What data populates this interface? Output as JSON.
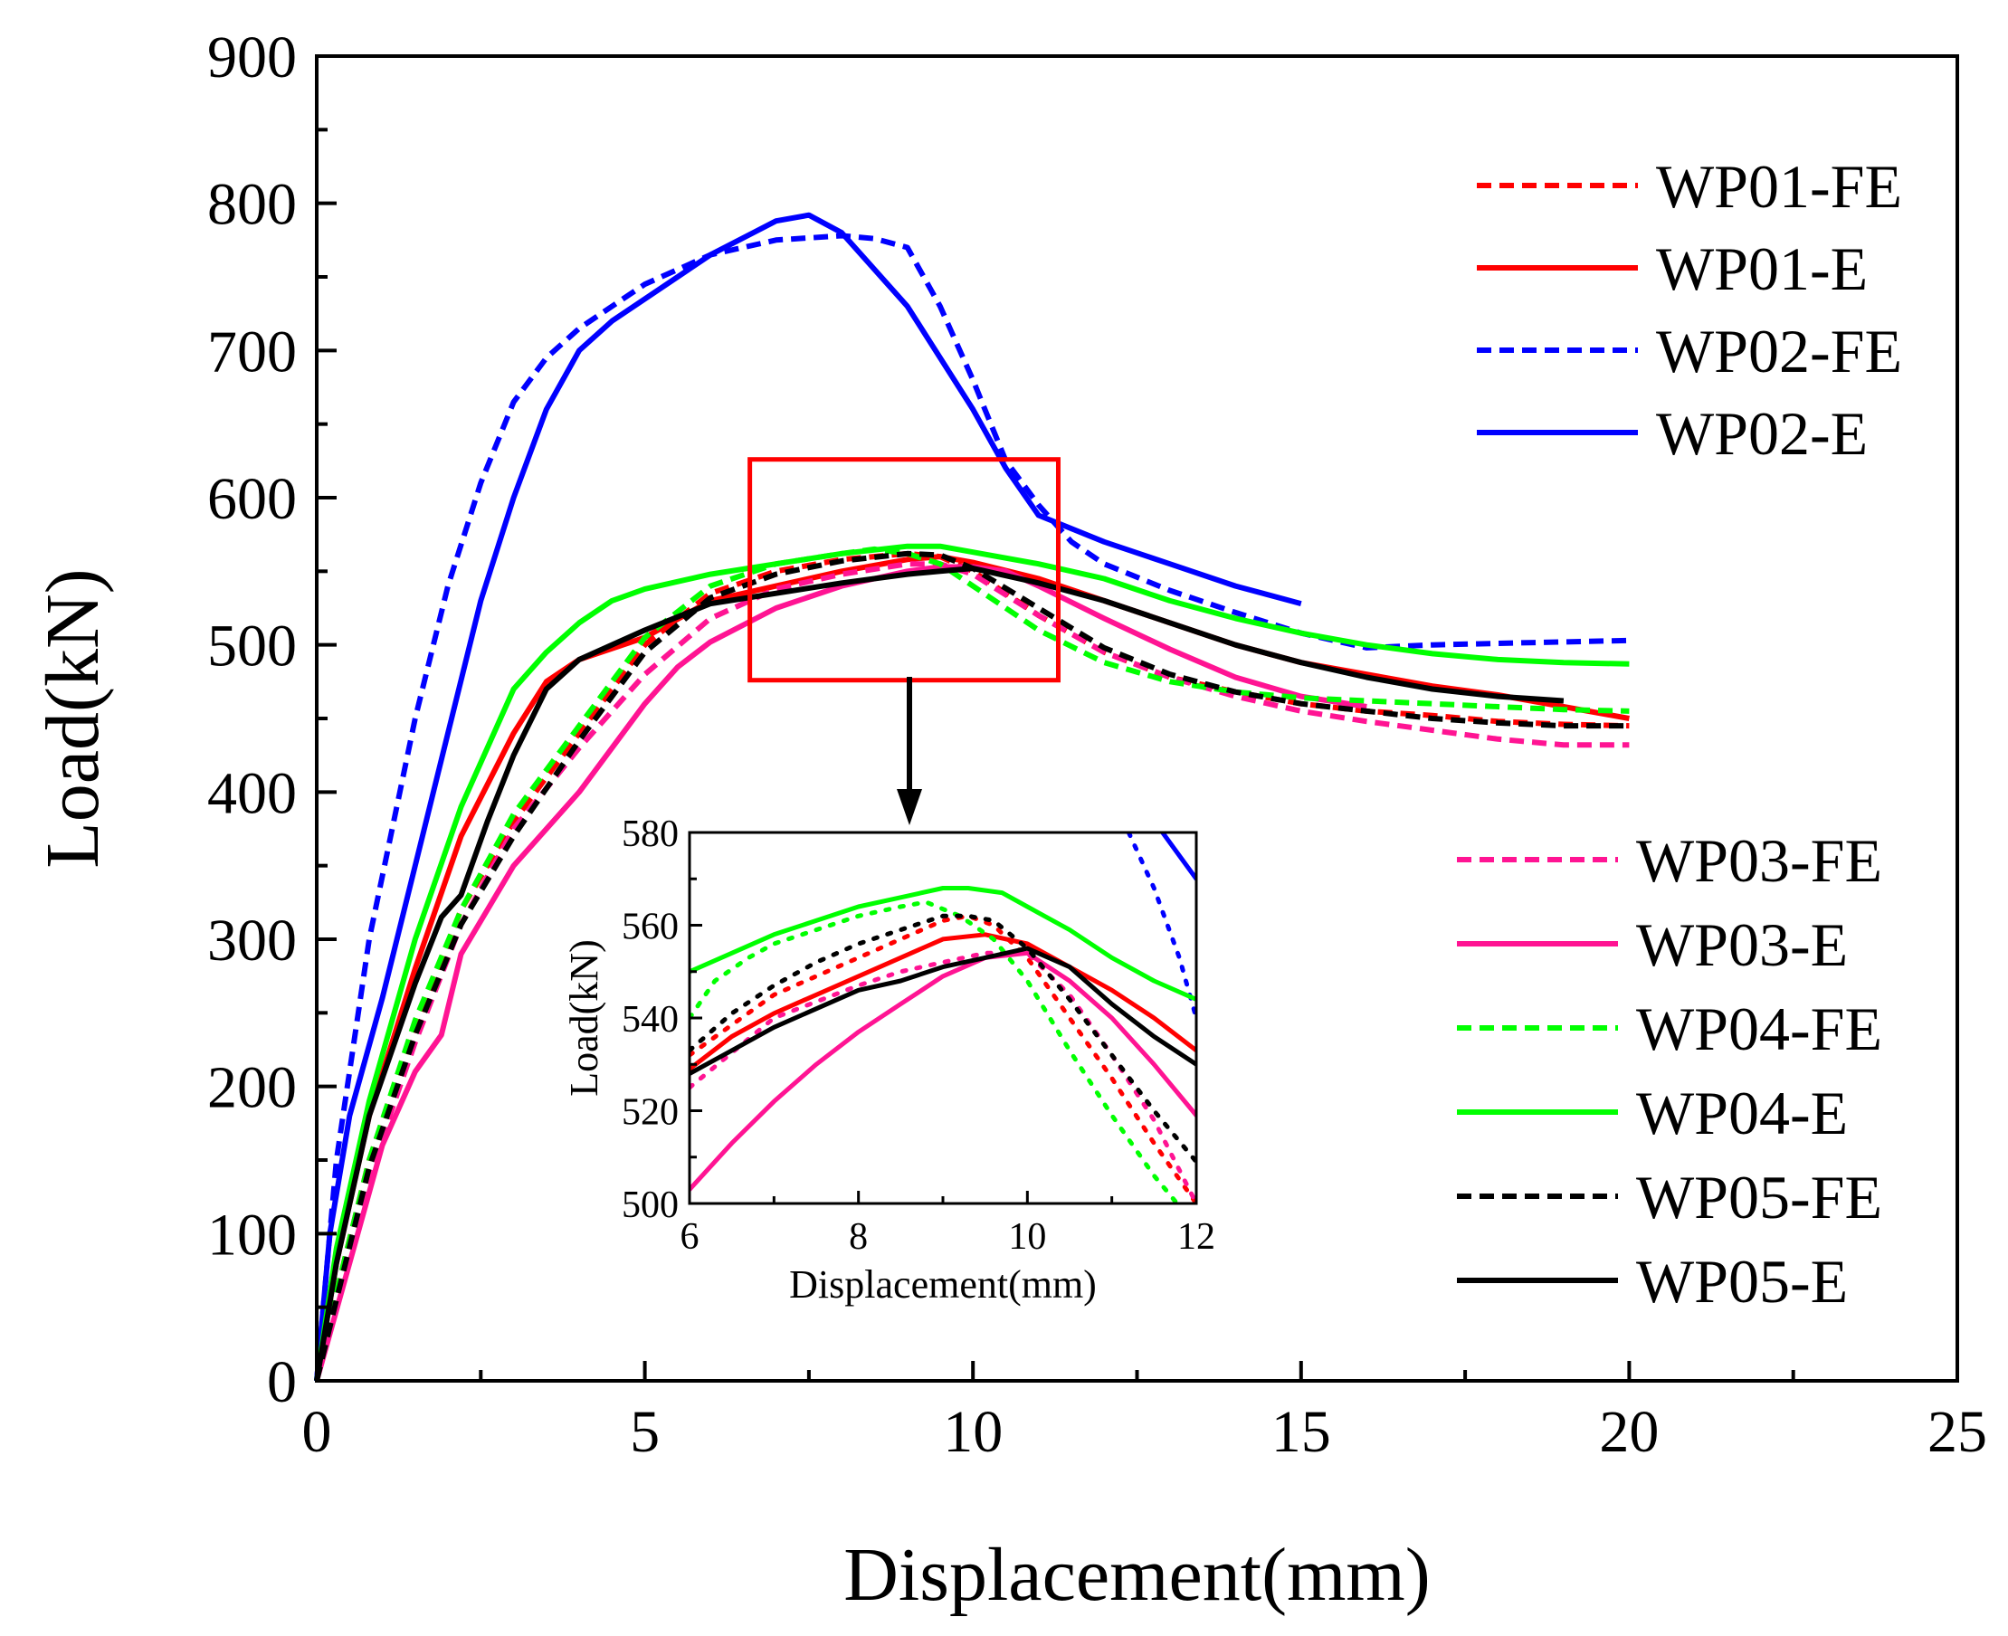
{
  "chart_data": {
    "type": "line",
    "xlabel": "Displacement(mm)",
    "ylabel": "Load(kN)",
    "xlim": [
      0,
      25
    ],
    "ylim": [
      0,
      900
    ],
    "xticks": [
      0,
      5,
      10,
      15,
      20,
      25
    ],
    "yticks": [
      0,
      100,
      200,
      300,
      400,
      500,
      600,
      700,
      800,
      900
    ],
    "grid": false,
    "legend_groups": [
      {
        "position": "top-right",
        "series": [
          "WP01-FE",
          "WP01-E",
          "WP02-FE",
          "WP02-E"
        ]
      },
      {
        "position": "bottom-right",
        "series": [
          "WP03-FE",
          "WP03-E",
          "WP04-FE",
          "WP04-E",
          "WP05-FE",
          "WP05-E"
        ]
      }
    ],
    "zoom_box": {
      "x": [
        6.6,
        11.3
      ],
      "y": [
        476,
        626
      ],
      "color": "#ff0000"
    },
    "series": [
      {
        "name": "WP01-FE",
        "color": "#ff0000",
        "style": "dashed",
        "x": [
          0,
          0.3,
          0.8,
          1.5,
          2.2,
          3,
          4,
          5,
          6,
          7,
          8,
          9,
          9.5,
          10,
          11,
          12,
          13,
          14,
          15,
          16,
          17,
          18,
          19,
          20
        ],
        "y": [
          0,
          60,
          150,
          240,
          320,
          380,
          440,
          500,
          535,
          550,
          558,
          562,
          560,
          550,
          520,
          495,
          478,
          468,
          460,
          455,
          452,
          448,
          446,
          445
        ]
      },
      {
        "name": "WP01-E",
        "color": "#ff0000",
        "style": "solid",
        "x": [
          0,
          0.3,
          0.8,
          1.5,
          2.2,
          3,
          3.5,
          4,
          5,
          6,
          7,
          8,
          9,
          9.5,
          10,
          11,
          12,
          13,
          14,
          15,
          16,
          17,
          18,
          19,
          20
        ],
        "y": [
          0,
          80,
          180,
          280,
          370,
          440,
          475,
          490,
          505,
          530,
          540,
          550,
          558,
          560,
          556,
          545,
          530,
          515,
          500,
          488,
          480,
          472,
          466,
          458,
          450
        ]
      },
      {
        "name": "WP02-FE",
        "color": "#0000ff",
        "style": "dashed",
        "x": [
          0,
          0.3,
          0.8,
          1.5,
          2,
          2.5,
          3,
          3.5,
          4,
          5,
          6,
          7,
          8,
          8.5,
          9,
          9.5,
          10,
          10.5,
          11,
          11.5,
          12,
          13,
          14,
          15,
          16,
          17,
          18,
          19,
          20
        ],
        "y": [
          0,
          150,
          300,
          450,
          540,
          610,
          665,
          695,
          715,
          745,
          765,
          775,
          778,
          776,
          770,
          730,
          680,
          625,
          595,
          570,
          555,
          537,
          522,
          508,
          498,
          500,
          501,
          502,
          503
        ]
      },
      {
        "name": "WP02-E",
        "color": "#0000ff",
        "style": "solid",
        "x": [
          0,
          0.2,
          0.5,
          1,
          1.5,
          2,
          2.5,
          3,
          3.5,
          4,
          4.5,
          5,
          6,
          7,
          7.5,
          8,
          9,
          10,
          10.5,
          11,
          12,
          13,
          14,
          15
        ],
        "y": [
          0,
          100,
          180,
          260,
          350,
          440,
          530,
          600,
          660,
          700,
          720,
          735,
          765,
          788,
          792,
          780,
          730,
          660,
          620,
          588,
          570,
          555,
          540,
          528
        ]
      },
      {
        "name": "WP03-FE",
        "color": "#ff1493",
        "style": "dashed",
        "x": [
          0,
          0.3,
          0.8,
          1.5,
          2.2,
          3,
          4,
          5,
          6,
          7,
          8,
          9,
          9.5,
          10,
          11,
          12,
          13,
          14,
          15,
          16,
          17,
          18,
          19,
          20
        ],
        "y": [
          0,
          55,
          140,
          230,
          310,
          375,
          430,
          480,
          518,
          538,
          548,
          555,
          555,
          548,
          520,
          495,
          478,
          465,
          455,
          448,
          442,
          436,
          432,
          432
        ]
      },
      {
        "name": "WP03-E",
        "color": "#ff1493",
        "style": "solid",
        "x": [
          0,
          0.5,
          1,
          1.5,
          1.9,
          2.2,
          2.6,
          3,
          4,
          5,
          5.5,
          6,
          7,
          8,
          9,
          9.5,
          10,
          10.5,
          11,
          12,
          13,
          14,
          15,
          16
        ],
        "y": [
          0,
          80,
          160,
          210,
          235,
          290,
          320,
          350,
          400,
          460,
          485,
          502,
          525,
          540,
          550,
          553,
          553,
          550,
          540,
          518,
          497,
          478,
          465,
          458
        ]
      },
      {
        "name": "WP04-FE",
        "color": "#00ff00",
        "style": "dashed",
        "x": [
          0,
          0.3,
          0.8,
          1.5,
          2.2,
          3,
          4,
          5,
          6,
          7,
          8,
          8.5,
          9,
          9.5,
          10,
          11,
          12,
          13,
          14,
          15,
          16,
          17,
          18,
          19,
          20
        ],
        "y": [
          0,
          60,
          150,
          245,
          320,
          385,
          445,
          505,
          540,
          555,
          562,
          565,
          562,
          555,
          540,
          510,
          488,
          475,
          468,
          464,
          462,
          460,
          458,
          456,
          455
        ]
      },
      {
        "name": "WP04-E",
        "color": "#00ff00",
        "style": "solid",
        "x": [
          0,
          0.3,
          0.8,
          1.5,
          2.2,
          3,
          3.5,
          4,
          4.5,
          5,
          6,
          7,
          8,
          9,
          9.5,
          10,
          11,
          12,
          13,
          14,
          15,
          16,
          17,
          18,
          19,
          20
        ],
        "y": [
          0,
          90,
          190,
          300,
          390,
          470,
          495,
          515,
          530,
          538,
          548,
          555,
          562,
          567,
          567,
          563,
          555,
          545,
          530,
          518,
          508,
          500,
          494,
          490,
          488,
          487
        ]
      },
      {
        "name": "WP05-FE",
        "color": "#000000",
        "style": "dashed",
        "x": [
          0,
          0.3,
          0.8,
          1.5,
          2.2,
          3,
          4,
          5,
          6,
          7,
          8,
          9,
          9.5,
          10,
          11,
          12,
          13,
          14,
          15,
          16,
          17,
          18,
          19,
          20
        ],
        "y": [
          0,
          55,
          145,
          235,
          310,
          370,
          435,
          495,
          532,
          548,
          557,
          562,
          561,
          552,
          525,
          498,
          480,
          468,
          460,
          455,
          450,
          447,
          445,
          445
        ]
      },
      {
        "name": "WP05-E",
        "color": "#000000",
        "style": "solid",
        "x": [
          0,
          0.3,
          0.8,
          1.5,
          1.9,
          2.2,
          2.6,
          3,
          3.5,
          4,
          5,
          6,
          7,
          8,
          9,
          9.5,
          10,
          11,
          12,
          13,
          14,
          15,
          16,
          17,
          18,
          19
        ],
        "y": [
          0,
          80,
          180,
          270,
          315,
          330,
          380,
          425,
          470,
          490,
          510,
          528,
          535,
          542,
          548,
          550,
          552,
          542,
          530,
          515,
          500,
          488,
          478,
          470,
          465,
          462
        ]
      }
    ],
    "inset": {
      "xlabel": "Displacement(mm)",
      "ylabel": "Load(kN)",
      "xlim": [
        6,
        12
      ],
      "ylim": [
        500,
        580
      ],
      "xticks": [
        6,
        8,
        10,
        12
      ],
      "yticks": [
        500,
        520,
        540,
        560,
        580
      ],
      "series": [
        {
          "name": "WP01-FE",
          "color": "#ff0000",
          "style": "dotted",
          "x": [
            6,
            7,
            8,
            8.5,
            9,
            9.3,
            9.6,
            10,
            10.5,
            11,
            11.5,
            12
          ],
          "y": [
            532,
            545,
            553,
            557,
            561,
            562,
            560,
            553,
            540,
            527,
            513,
            500
          ]
        },
        {
          "name": "WP01-E",
          "color": "#ff0000",
          "style": "solid",
          "x": [
            6,
            6.5,
            7,
            7.5,
            8,
            8.5,
            9,
            9.5,
            10,
            10.5,
            11,
            11.5,
            12
          ],
          "y": [
            529,
            536,
            541,
            545,
            549,
            553,
            557,
            558,
            556,
            551,
            546,
            540,
            533
          ]
        },
        {
          "name": "WP02-FE",
          "color": "#0000ff",
          "style": "dotted",
          "x": [
            11.2,
            11.5,
            11.8,
            12
          ],
          "y": [
            580,
            568,
            553,
            540
          ]
        },
        {
          "name": "WP02-E",
          "color": "#0000ff",
          "style": "solid",
          "x": [
            11.6,
            11.8,
            12
          ],
          "y": [
            580,
            575,
            570
          ]
        },
        {
          "name": "WP03-FE",
          "color": "#ff1493",
          "style": "dotted",
          "x": [
            6,
            7,
            8,
            8.5,
            9,
            9.5,
            10,
            10.5,
            11,
            11.5,
            12
          ],
          "y": [
            525,
            540,
            547,
            550,
            552,
            554,
            554,
            545,
            532,
            518,
            500
          ]
        },
        {
          "name": "WP03-E",
          "color": "#ff1493",
          "style": "solid",
          "x": [
            6,
            6.5,
            7,
            7.5,
            8,
            8.5,
            9,
            9.5,
            10,
            10.5,
            11,
            11.5,
            12
          ],
          "y": [
            503,
            513,
            522,
            530,
            537,
            543,
            549,
            553,
            554,
            548,
            540,
            530,
            519
          ]
        },
        {
          "name": "WP04-FE",
          "color": "#00ff00",
          "style": "dotted",
          "x": [
            6,
            6.3,
            6.7,
            7,
            7.5,
            8,
            8.5,
            8.8,
            9.2,
            9.6,
            10,
            10.5,
            11,
            11.5,
            12
          ],
          "y": [
            540,
            548,
            553,
            556,
            559,
            562,
            564,
            565,
            562,
            557,
            548,
            533,
            519,
            506,
            495
          ]
        },
        {
          "name": "WP04-E",
          "color": "#00ff00",
          "style": "solid",
          "x": [
            6,
            6.5,
            7,
            7.5,
            8,
            8.5,
            9,
            9.3,
            9.7,
            10,
            10.5,
            11,
            11.5,
            12
          ],
          "y": [
            550,
            554,
            558,
            561,
            564,
            566,
            568,
            568,
            567,
            564,
            559,
            553,
            548,
            544
          ]
        },
        {
          "name": "WP05-FE",
          "color": "#000000",
          "style": "dotted",
          "x": [
            6,
            6.5,
            7,
            7.5,
            8,
            8.5,
            9,
            9.3,
            9.6,
            10,
            10.5,
            11,
            11.5,
            12
          ],
          "y": [
            533,
            541,
            547,
            552,
            556,
            559,
            562,
            562,
            561,
            555,
            544,
            532,
            520,
            509
          ]
        },
        {
          "name": "WP05-E",
          "color": "#000000",
          "style": "solid",
          "x": [
            6,
            6.5,
            7,
            7.5,
            8,
            8.5,
            9,
            9.5,
            10,
            10.5,
            11,
            11.5,
            12
          ],
          "y": [
            528,
            533,
            538,
            542,
            546,
            548,
            551,
            553,
            555,
            551,
            543,
            536,
            530
          ]
        }
      ]
    }
  }
}
